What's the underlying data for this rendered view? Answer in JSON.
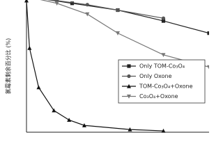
{
  "chart_data": {
    "type": "line",
    "y_label": "氯霉素剩余百分比 (%)",
    "xlim": [
      0,
      60
    ],
    "ylim": [
      0,
      100
    ],
    "legend": "lower right",
    "series": [
      {
        "name": "Only TOM-Co₃O₄",
        "color": "#222222",
        "marker": "square",
        "x": [
          0,
          15,
          30,
          45,
          60
        ],
        "values": [
          100,
          95,
          90,
          82,
          73
        ]
      },
      {
        "name": "Only Oxone",
        "color": "#555555",
        "marker": "circle",
        "x": [
          0,
          10,
          20,
          30,
          45
        ],
        "values": [
          100,
          97,
          94,
          90,
          84
        ]
      },
      {
        "name": "TOM-Co₃O₄+Oxone",
        "color": "#111111",
        "marker": "triangle-up",
        "x": [
          0,
          1,
          4,
          9,
          14,
          19,
          34,
          45
        ],
        "values": [
          97,
          62,
          33,
          16,
          9,
          5,
          2,
          1
        ]
      },
      {
        "name": "Co₃O₄+Oxone",
        "color": "#777777",
        "marker": "triangle-down",
        "x": [
          0,
          10,
          20,
          30,
          45,
          60
        ],
        "values": [
          100,
          95,
          87,
          73,
          57,
          48
        ]
      }
    ]
  }
}
